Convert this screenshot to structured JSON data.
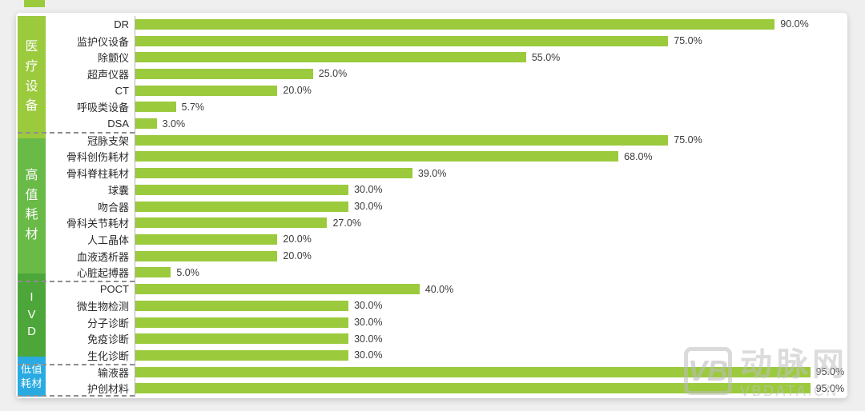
{
  "chart_data": {
    "type": "bar",
    "orientation": "horizontal",
    "value_unit": "%",
    "xlim": [
      0,
      100
    ],
    "value_format": "one-decimal-percent",
    "grid": false,
    "legend": false,
    "bar_color": "#9bca3d",
    "groups": [
      {
        "key": "medical-equipment",
        "label": "医疗设备",
        "label_lines": [
          "医",
          "疗",
          "设",
          "备"
        ],
        "color": "#9bca3d",
        "items": [
          {
            "label": "DR",
            "value": 90.0
          },
          {
            "label": "监护仪设备",
            "value": 75.0
          },
          {
            "label": "除颤仪",
            "value": 55.0
          },
          {
            "label": "超声仪器",
            "value": 25.0
          },
          {
            "label": "CT",
            "value": 20.0
          },
          {
            "label": "呼吸类设备",
            "value": 5.7
          },
          {
            "label": "DSA",
            "value": 3.0
          }
        ]
      },
      {
        "key": "high-value-consumables",
        "label": "高值耗材",
        "label_lines": [
          "高",
          "值",
          "耗",
          "材"
        ],
        "color": "#69ba47",
        "items": [
          {
            "label": "冠脉支架",
            "value": 75.0
          },
          {
            "label": "骨科创伤耗材",
            "value": 68.0
          },
          {
            "label": "骨科脊柱耗材",
            "value": 39.0
          },
          {
            "label": "球囊",
            "value": 30.0
          },
          {
            "label": "吻合器",
            "value": 30.0
          },
          {
            "label": "骨科关节耗材",
            "value": 27.0
          },
          {
            "label": "人工晶体",
            "value": 20.0
          },
          {
            "label": "血液透析器",
            "value": 20.0
          },
          {
            "label": "心脏起搏器",
            "value": 5.0
          }
        ]
      },
      {
        "key": "ivd",
        "label": "IVD",
        "label_lines": [
          "I",
          "V",
          "D"
        ],
        "color": "#4ca639",
        "items": [
          {
            "label": "POCT",
            "value": 40.0
          },
          {
            "label": "微生物检测",
            "value": 30.0
          },
          {
            "label": "分子诊断",
            "value": 30.0
          },
          {
            "label": "免疫诊断",
            "value": 30.0
          },
          {
            "label": "生化诊断",
            "value": 30.0
          }
        ]
      },
      {
        "key": "low-value-consumables",
        "label": "低值耗材",
        "label_lines": [
          "低值",
          "耗材"
        ],
        "color": "#29abe2",
        "items": [
          {
            "label": "输液器",
            "value": 95.0
          },
          {
            "label": "护创材料",
            "value": 95.0
          }
        ]
      }
    ]
  },
  "watermark": {
    "logo_text": "VB",
    "brand_name": "动脉网",
    "site_url": "VBDATA.CN"
  }
}
